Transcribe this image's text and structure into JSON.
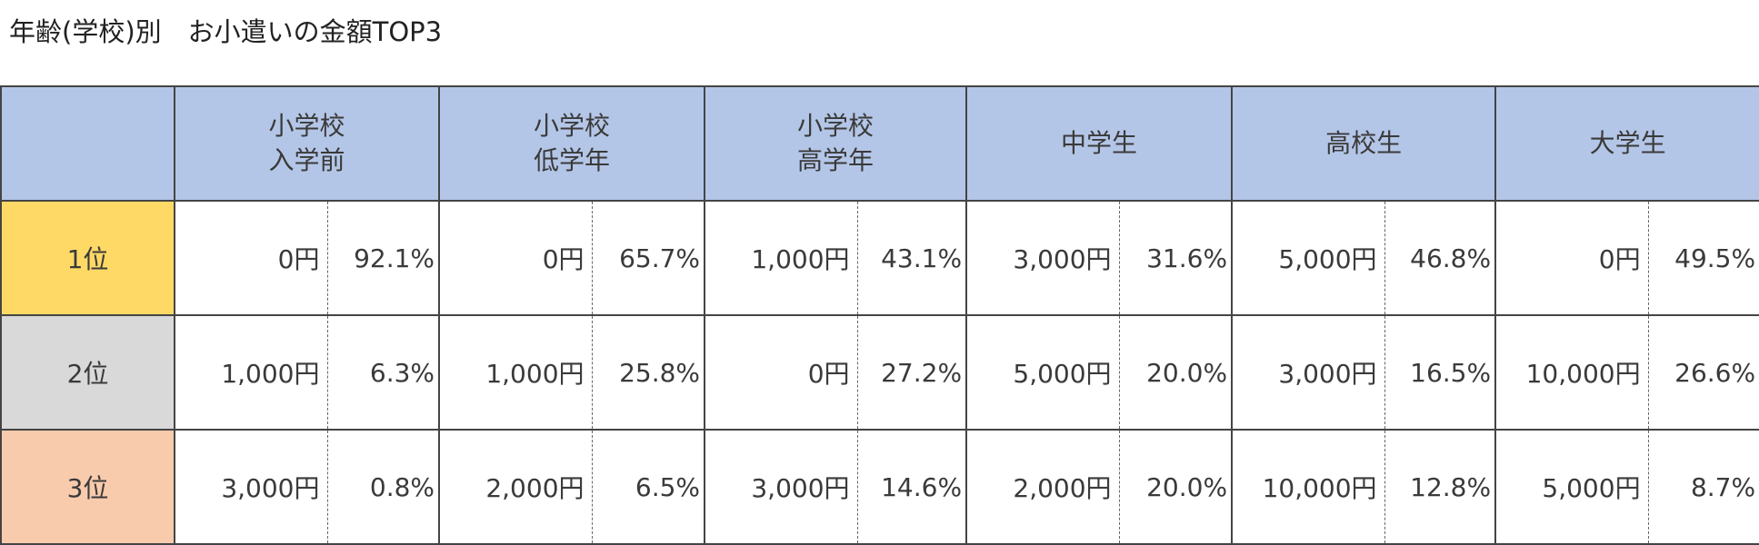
{
  "title": "年齢(学校)別　お小遣いの金額TOP3",
  "header": {
    "corner": "",
    "groups": [
      {
        "line1": "小学校",
        "line2": "入学前"
      },
      {
        "line1": "小学校",
        "line2": "低学年"
      },
      {
        "line1": "小学校",
        "line2": "高学年"
      },
      {
        "line1": "中学生",
        "line2": ""
      },
      {
        "line1": "高校生",
        "line2": ""
      },
      {
        "line1": "大学生",
        "line2": ""
      }
    ]
  },
  "rank_colors": [
    "#ffd966",
    "#d9d9d9",
    "#f8cbad"
  ],
  "header_color": "#b4c6e7",
  "rows": [
    {
      "rank": "1位",
      "cells": [
        {
          "amount": "0円",
          "pct": "92.1%"
        },
        {
          "amount": "0円",
          "pct": "65.7%"
        },
        {
          "amount": "1,000円",
          "pct": "43.1%"
        },
        {
          "amount": "3,000円",
          "pct": "31.6%"
        },
        {
          "amount": "5,000円",
          "pct": "46.8%"
        },
        {
          "amount": "0円",
          "pct": "49.5%"
        }
      ]
    },
    {
      "rank": "2位",
      "cells": [
        {
          "amount": "1,000円",
          "pct": "6.3%"
        },
        {
          "amount": "1,000円",
          "pct": "25.8%"
        },
        {
          "amount": "0円",
          "pct": "27.2%"
        },
        {
          "amount": "5,000円",
          "pct": "20.0%"
        },
        {
          "amount": "3,000円",
          "pct": "16.5%"
        },
        {
          "amount": "10,000円",
          "pct": "26.6%"
        }
      ]
    },
    {
      "rank": "3位",
      "cells": [
        {
          "amount": "3,000円",
          "pct": "0.8%"
        },
        {
          "amount": "2,000円",
          "pct": "6.5%"
        },
        {
          "amount": "3,000円",
          "pct": "14.6%"
        },
        {
          "amount": "2,000円",
          "pct": "20.0%"
        },
        {
          "amount": "10,000円",
          "pct": "12.8%"
        },
        {
          "amount": "5,000円",
          "pct": "8.7%"
        }
      ]
    }
  ]
}
